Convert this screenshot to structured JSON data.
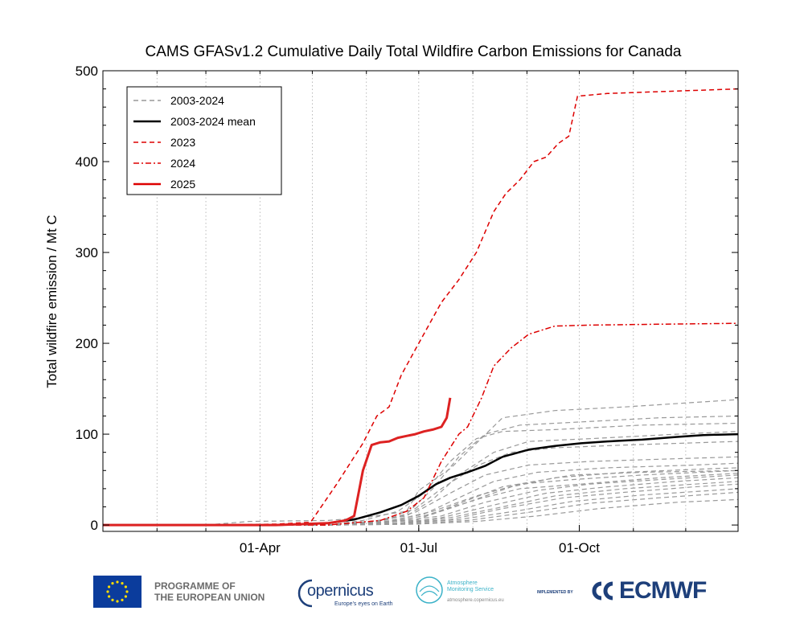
{
  "chart_data": {
    "type": "line",
    "title": "CAMS GFASv1.2 Cumulative Daily Total Wildfire Carbon Emissions for Canada",
    "ylabel": "Total wildfire emission / Mt C",
    "xlabel": "",
    "xlim": [
      1,
      365
    ],
    "ylim": [
      -7,
      500
    ],
    "yticks": [
      0,
      100,
      200,
      300,
      400,
      500
    ],
    "xticks": [
      {
        "label": "01-Apr",
        "day": 91
      },
      {
        "label": "01-Jul",
        "day": 182
      },
      {
        "label": "01-Oct",
        "day": 274
      }
    ],
    "month_gridlines": [
      32,
      60,
      91,
      121,
      152,
      182,
      213,
      244,
      274,
      305,
      335
    ],
    "grid": true,
    "legend_position": "top-left",
    "legend": [
      {
        "label": "2003-2024",
        "style": "dashed",
        "color": "#999999"
      },
      {
        "label": "2003-2024 mean",
        "style": "solid",
        "color": "#000000"
      },
      {
        "label": "2023",
        "style": "dashed",
        "color": "#dd0000"
      },
      {
        "label": "2024",
        "style": "dashdot",
        "color": "#dd0000"
      },
      {
        "label": "2025",
        "style": "solid",
        "color": "#dd0000"
      }
    ],
    "series": [
      {
        "name": "2023",
        "color": "#dd0000",
        "style": "dashed",
        "width": 1.5,
        "x": [
          1,
          60,
          100,
          120,
          135,
          150,
          158,
          165,
          172,
          182,
          195,
          205,
          215,
          225,
          232,
          240,
          248,
          255,
          262,
          268,
          273,
          290,
          320,
          365
        ],
        "y": [
          0,
          0,
          1,
          3,
          45,
          90,
          120,
          130,
          165,
          200,
          245,
          270,
          300,
          345,
          365,
          380,
          400,
          405,
          420,
          428,
          472,
          475,
          477,
          480
        ]
      },
      {
        "name": "2024",
        "color": "#dd0000",
        "style": "dashdot",
        "width": 1.5,
        "x": [
          1,
          130,
          160,
          175,
          185,
          195,
          205,
          210,
          218,
          225,
          235,
          245,
          260,
          280,
          320,
          365
        ],
        "y": [
          0,
          0,
          5,
          15,
          30,
          70,
          100,
          108,
          140,
          175,
          195,
          210,
          219,
          220,
          221,
          222
        ]
      },
      {
        "name": "2025",
        "color": "#dd2222",
        "style": "solid",
        "width": 3,
        "x": [
          1,
          100,
          130,
          140,
          145,
          150,
          155,
          160,
          165,
          170,
          175,
          180,
          185,
          190,
          195,
          198,
          200
        ],
        "y": [
          0,
          0,
          2,
          5,
          10,
          60,
          88,
          91,
          92,
          96,
          98,
          100,
          103,
          105,
          108,
          118,
          140
        ]
      },
      {
        "name": "2003-2024 mean",
        "color": "#000000",
        "style": "solid",
        "width": 2.5,
        "x": [
          1,
          100,
          130,
          145,
          160,
          172,
          182,
          192,
          200,
          210,
          220,
          230,
          245,
          260,
          275,
          290,
          310,
          330,
          345,
          365
        ],
        "y": [
          0,
          0,
          2,
          6,
          14,
          22,
          32,
          45,
          52,
          58,
          65,
          75,
          83,
          87,
          90,
          92,
          94,
          97,
          99,
          100
        ]
      },
      {
        "color": "#999999",
        "style": "dashed",
        "width": 1.2,
        "x": [
          1,
          60,
          85,
          130,
          150,
          175,
          182,
          200,
          215,
          230,
          260,
          300,
          365
        ],
        "y": [
          0,
          0,
          4,
          5,
          8,
          15,
          38,
          62,
          90,
          118,
          126,
          130,
          138
        ]
      },
      {
        "color": "#999999",
        "style": "dashed",
        "width": 1.2,
        "x": [
          1,
          130,
          155,
          175,
          190,
          205,
          220,
          240,
          270,
          320,
          365
        ],
        "y": [
          0,
          0,
          3,
          12,
          40,
          75,
          100,
          110,
          113,
          118,
          120
        ]
      },
      {
        "color": "#999999",
        "style": "dashed",
        "width": 1.2,
        "x": [
          1,
          130,
          150,
          170,
          185,
          200,
          215,
          230,
          260,
          310,
          365
        ],
        "y": [
          0,
          0,
          5,
          15,
          35,
          70,
          95,
          103,
          105,
          110,
          112
        ]
      },
      {
        "color": "#999999",
        "style": "dashed",
        "width": 1.2,
        "x": [
          1,
          130,
          155,
          175,
          190,
          205,
          225,
          245,
          280,
          330,
          365
        ],
        "y": [
          0,
          0,
          4,
          10,
          28,
          55,
          80,
          92,
          95,
          100,
          103
        ]
      },
      {
        "color": "#999999",
        "style": "dashed",
        "width": 1.2,
        "x": [
          1,
          130,
          160,
          180,
          195,
          215,
          235,
          260,
          300,
          365
        ],
        "y": [
          0,
          0,
          5,
          18,
          40,
          65,
          80,
          85,
          88,
          92
        ]
      },
      {
        "color": "#999999",
        "style": "dashed",
        "width": 1.2,
        "x": [
          1,
          130,
          160,
          180,
          200,
          220,
          245,
          280,
          330,
          365
        ],
        "y": [
          0,
          0,
          4,
          14,
          35,
          55,
          66,
          70,
          73,
          75
        ]
      },
      {
        "color": "#999999",
        "style": "dashed",
        "width": 1.2,
        "x": [
          1,
          130,
          160,
          185,
          205,
          225,
          250,
          290,
          340,
          365
        ],
        "y": [
          0,
          0,
          3,
          12,
          30,
          48,
          58,
          63,
          66,
          68
        ]
      },
      {
        "color": "#999999",
        "style": "dashed",
        "width": 1.2,
        "x": [
          1,
          130,
          160,
          185,
          210,
          235,
          260,
          300,
          350,
          365
        ],
        "y": [
          0,
          0,
          2,
          10,
          25,
          42,
          52,
          58,
          62,
          63
        ]
      },
      {
        "color": "#999999",
        "style": "dashed",
        "width": 1.2,
        "x": [
          1,
          130,
          165,
          190,
          215,
          240,
          270,
          310,
          365
        ],
        "y": [
          0,
          0,
          4,
          15,
          32,
          45,
          50,
          55,
          60
        ]
      },
      {
        "color": "#999999",
        "style": "dashed",
        "width": 1.2,
        "x": [
          1,
          130,
          165,
          190,
          215,
          240,
          275,
          320,
          365
        ],
        "y": [
          0,
          0,
          3,
          12,
          28,
          40,
          45,
          52,
          57
        ]
      },
      {
        "color": "#999999",
        "style": "dashed",
        "width": 1.2,
        "x": [
          1,
          130,
          165,
          195,
          220,
          250,
          280,
          320,
          365
        ],
        "y": [
          0,
          0,
          3,
          10,
          25,
          38,
          45,
          50,
          55
        ]
      },
      {
        "color": "#999999",
        "style": "dashed",
        "width": 1.2,
        "x": [
          1,
          130,
          170,
          195,
          225,
          255,
          290,
          330,
          365
        ],
        "y": [
          0,
          0,
          2,
          8,
          22,
          35,
          42,
          48,
          52
        ]
      },
      {
        "color": "#999999",
        "style": "dashed",
        "width": 1.2,
        "x": [
          1,
          130,
          170,
          200,
          230,
          260,
          300,
          340,
          365
        ],
        "y": [
          0,
          0,
          2,
          8,
          20,
          32,
          40,
          45,
          48
        ]
      },
      {
        "color": "#999999",
        "style": "dashed",
        "width": 1.2,
        "x": [
          1,
          130,
          170,
          200,
          230,
          265,
          300,
          340,
          365
        ],
        "y": [
          0,
          0,
          2,
          6,
          18,
          30,
          36,
          42,
          45
        ]
      },
      {
        "color": "#999999",
        "style": "dashed",
        "width": 1.2,
        "x": [
          1,
          135,
          175,
          205,
          240,
          270,
          310,
          350,
          365
        ],
        "y": [
          0,
          0,
          2,
          6,
          16,
          26,
          33,
          38,
          40
        ]
      },
      {
        "color": "#999999",
        "style": "dashed",
        "width": 1.2,
        "x": [
          1,
          135,
          175,
          210,
          245,
          280,
          320,
          365
        ],
        "y": [
          0,
          0,
          1,
          5,
          14,
          24,
          30,
          36
        ]
      },
      {
        "color": "#999999",
        "style": "dashed",
        "width": 1.2,
        "x": [
          1,
          135,
          180,
          215,
          250,
          285,
          330,
          365
        ],
        "y": [
          0,
          0,
          1,
          4,
          10,
          18,
          25,
          28
        ]
      },
      {
        "color": "#999999",
        "style": "dashed",
        "width": 1.2,
        "x": [
          1,
          135,
          180,
          200,
          230,
          270,
          310,
          365
        ],
        "y": [
          0,
          0,
          5,
          20,
          42,
          55,
          58,
          60
        ]
      }
    ]
  },
  "footer": {
    "eu_line1": "PROGRAMME OF",
    "eu_line2": "THE EUROPEAN UNION",
    "copernicus_word": "opernicus",
    "copernicus_tagline": "Europe's eyes on Earth",
    "ams_line1": "Atmosphere",
    "ams_line2": "Monitoring Service",
    "ams_url": "atmosphere.copernicus.eu",
    "implemented_by": "IMPLEMENTED BY",
    "ecmwf": "ECMWF"
  }
}
